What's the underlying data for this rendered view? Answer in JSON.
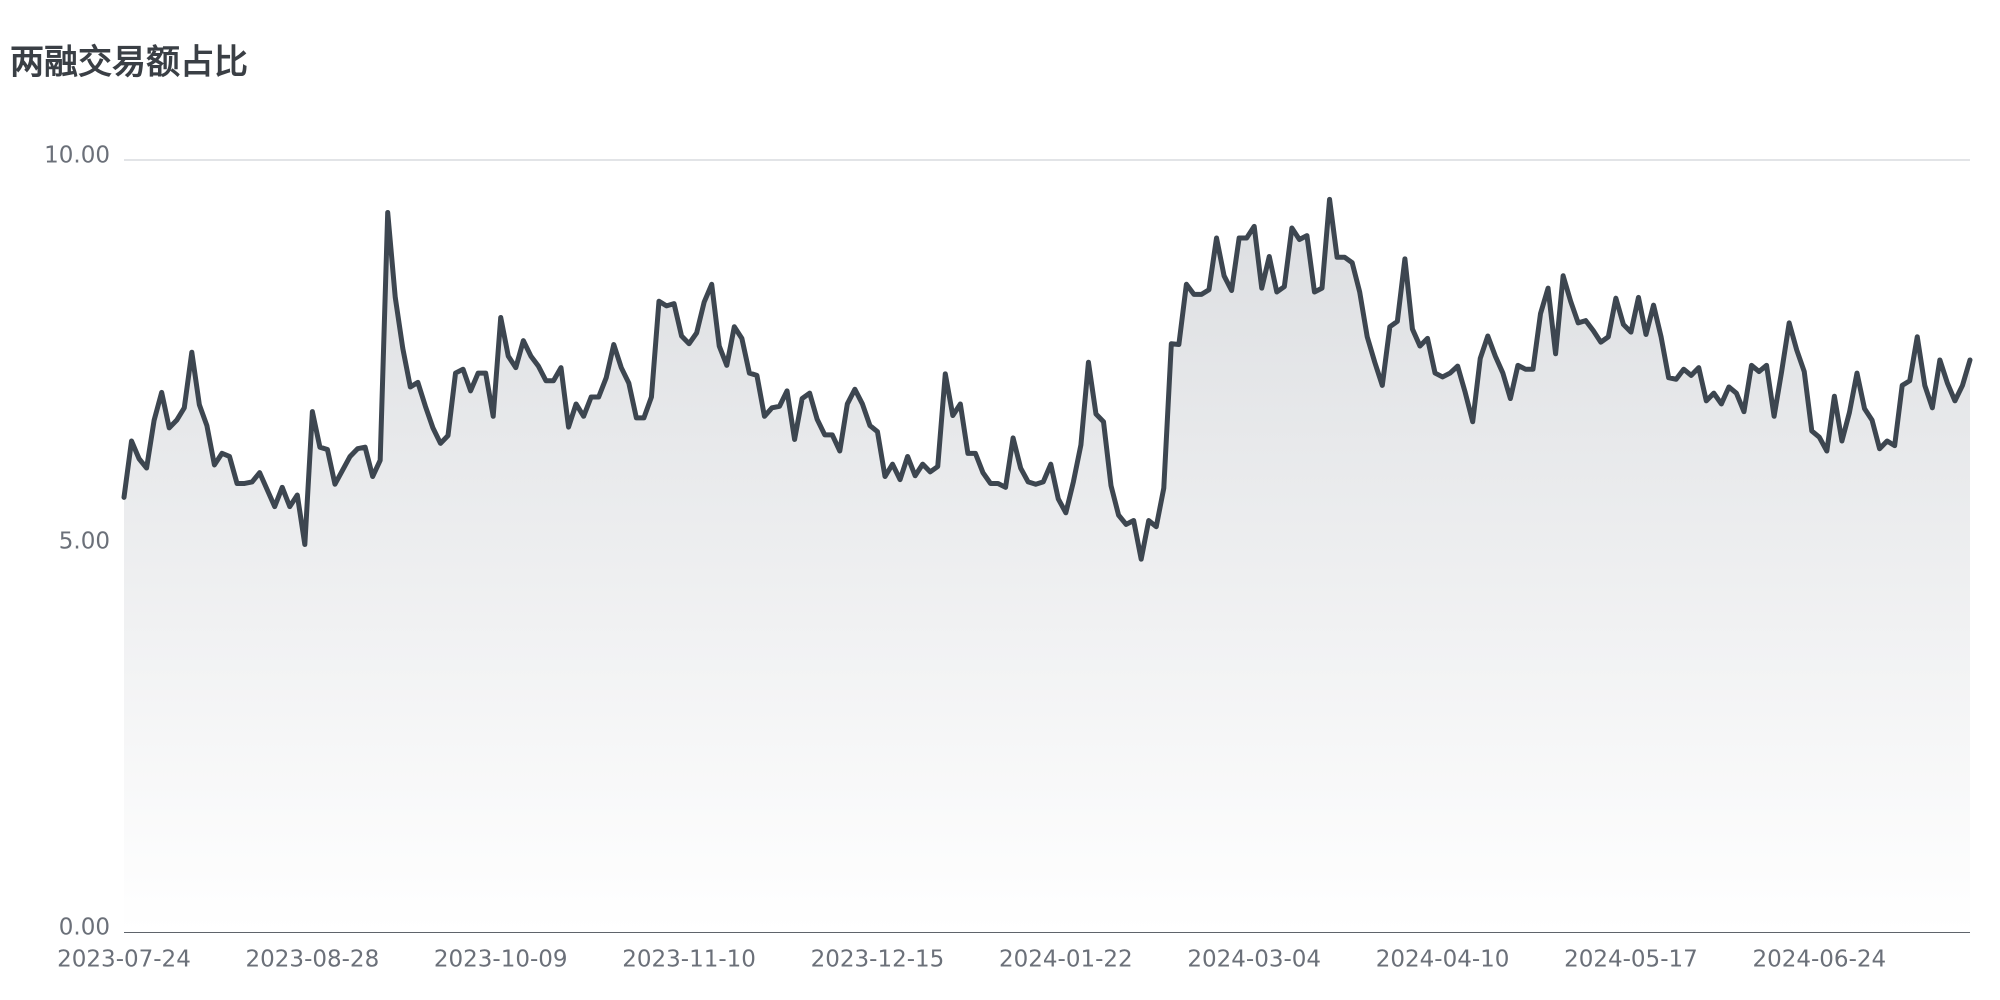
{
  "chart_data": {
    "type": "area",
    "title": "两融交易额占比",
    "color": "#3d4650",
    "ylim": [
      0,
      10
    ],
    "yticks": [
      {
        "value": 0,
        "label": "0.00"
      },
      {
        "value": 5,
        "label": "5.00"
      },
      {
        "value": 10,
        "label": "10.00"
      }
    ],
    "grid": true,
    "categories": [
      "2023-07-24",
      null,
      null,
      null,
      null,
      null,
      null,
      null,
      null,
      null,
      null,
      null,
      null,
      null,
      null,
      null,
      null,
      null,
      null,
      null,
      null,
      null,
      null,
      null,
      null,
      "2023-08-28",
      null,
      null,
      null,
      null,
      null,
      null,
      null,
      null,
      null,
      null,
      null,
      null,
      null,
      null,
      null,
      null,
      null,
      null,
      null,
      null,
      null,
      null,
      null,
      null,
      "2023-10-09",
      null,
      null,
      null,
      null,
      null,
      null,
      null,
      null,
      null,
      null,
      null,
      null,
      null,
      null,
      null,
      null,
      null,
      null,
      null,
      null,
      null,
      null,
      null,
      null,
      "2023-11-10",
      null,
      null,
      null,
      null,
      null,
      null,
      null,
      null,
      null,
      null,
      null,
      null,
      null,
      null,
      null,
      null,
      null,
      null,
      null,
      null,
      null,
      null,
      null,
      null,
      "2023-12-15",
      null,
      null,
      null,
      null,
      null,
      null,
      null,
      null,
      null,
      null,
      null,
      null,
      null,
      null,
      null,
      null,
      null,
      null,
      null,
      null,
      null,
      null,
      null,
      null,
      "2024-01-22",
      null,
      null,
      null,
      null,
      null,
      null,
      null,
      null,
      null,
      null,
      null,
      null,
      null,
      null,
      null,
      null,
      null,
      null,
      null,
      null,
      null,
      null,
      null,
      null,
      "2024-03-04",
      null,
      null,
      null,
      null,
      null,
      null,
      null,
      null,
      null,
      null,
      null,
      null,
      null,
      null,
      null,
      null,
      null,
      null,
      null,
      null,
      null,
      null,
      null,
      null,
      "2024-04-10",
      null,
      null,
      null,
      null,
      null,
      null,
      null,
      null,
      null,
      null,
      null,
      null,
      null,
      null,
      null,
      null,
      null,
      null,
      null,
      null,
      null,
      null,
      null,
      null,
      "2024-05-17",
      null,
      null,
      null,
      null,
      null,
      null,
      null,
      null,
      null,
      null,
      null,
      null,
      null,
      null,
      null,
      null,
      null,
      null,
      null,
      null,
      null,
      null,
      null,
      null,
      "2024-06-24",
      null,
      null,
      null,
      null,
      null,
      null,
      null,
      null,
      null,
      null,
      null,
      null,
      null,
      null,
      null,
      null,
      null,
      null,
      null,
      null
    ],
    "values": [
      5.63,
      6.36,
      6.13,
      6.01,
      6.63,
      6.99,
      6.53,
      6.63,
      6.79,
      7.51,
      6.83,
      6.56,
      6.05,
      6.2,
      6.16,
      5.81,
      5.81,
      5.83,
      5.95,
      5.73,
      5.51,
      5.76,
      5.51,
      5.66,
      5.02,
      6.74,
      6.28,
      6.25,
      5.8,
      5.98,
      6.16,
      6.26,
      6.28,
      5.9,
      6.11,
      9.32,
      8.22,
      7.56,
      7.06,
      7.12,
      6.81,
      6.53,
      6.33,
      6.43,
      7.24,
      7.29,
      7.01,
      7.24,
      7.24,
      6.68,
      7.96,
      7.46,
      7.31,
      7.66,
      7.46,
      7.33,
      7.14,
      7.14,
      7.31,
      6.54,
      6.84,
      6.68,
      6.93,
      6.93,
      7.18,
      7.61,
      7.31,
      7.11,
      6.66,
      6.66,
      6.93,
      8.17,
      8.11,
      8.14,
      7.72,
      7.62,
      7.76,
      8.16,
      8.39,
      7.59,
      7.34,
      7.84,
      7.69,
      7.24,
      7.21,
      6.68,
      6.79,
      6.81,
      7.01,
      6.38,
      6.91,
      6.98,
      6.64,
      6.44,
      6.44,
      6.23,
      6.84,
      7.03,
      6.84,
      6.56,
      6.48,
      5.9,
      6.06,
      5.86,
      6.16,
      5.91,
      6.06,
      5.96,
      6.03,
      7.23,
      6.69,
      6.84,
      6.2,
      6.2,
      5.95,
      5.81,
      5.81,
      5.76,
      6.4,
      6.01,
      5.83,
      5.8,
      5.83,
      6.06,
      5.61,
      5.43,
      5.83,
      6.31,
      7.38,
      6.71,
      6.61,
      5.78,
      5.4,
      5.28,
      5.33,
      4.83,
      5.33,
      5.25,
      5.75,
      7.62,
      7.61,
      8.39,
      8.26,
      8.26,
      8.32,
      8.99,
      8.5,
      8.31,
      8.99,
      8.99,
      9.14,
      8.34,
      8.75,
      8.29,
      8.36,
      9.12,
      8.97,
      9.02,
      8.29,
      8.34,
      9.49,
      8.74,
      8.74,
      8.67,
      8.29,
      7.71,
      7.38,
      7.08,
      7.84,
      7.91,
      8.72,
      7.81,
      7.59,
      7.69,
      7.24,
      7.19,
      7.24,
      7.33,
      6.99,
      6.61,
      7.43,
      7.72,
      7.46,
      7.24,
      6.91,
      7.34,
      7.29,
      7.29,
      8.01,
      8.34,
      7.49,
      8.5,
      8.17,
      7.89,
      7.92,
      7.79,
      7.64,
      7.71,
      8.21,
      7.87,
      7.77,
      8.22,
      7.74,
      8.12,
      7.71,
      7.18,
      7.16,
      7.29,
      7.21,
      7.31,
      6.88,
      6.98,
      6.84,
      7.06,
      6.98,
      6.74,
      7.34,
      7.26,
      7.34,
      6.68,
      7.26,
      7.89,
      7.54,
      7.26,
      6.49,
      6.41,
      6.23,
      6.94,
      6.36,
      6.73,
      7.24,
      6.78,
      6.63,
      6.26,
      6.36,
      6.3,
      7.08,
      7.14,
      7.71,
      7.08,
      6.79,
      7.41,
      7.11,
      6.88,
      7.08,
      7.41
    ]
  }
}
